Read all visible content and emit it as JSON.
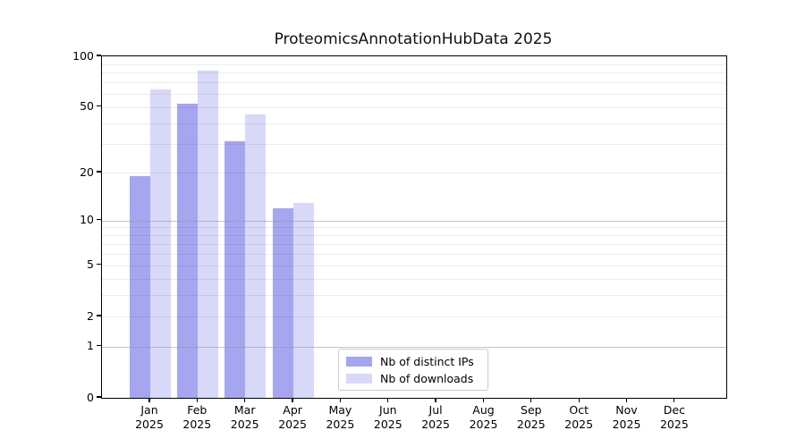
{
  "chart_data": {
    "type": "bar",
    "title": "ProteomicsAnnotationHubData 2025",
    "categories": [
      "Jan",
      "Feb",
      "Mar",
      "Apr",
      "May",
      "Jun",
      "Jul",
      "Aug",
      "Sep",
      "Oct",
      "Nov",
      "Dec"
    ],
    "year_label": "2025",
    "series": [
      {
        "name": "Nb of distinct IPs",
        "color": "#a5a5f0",
        "values": [
          19,
          52,
          31,
          12,
          null,
          null,
          null,
          null,
          null,
          null,
          null,
          null
        ]
      },
      {
        "name": "Nb of downloads",
        "color": "#d8d8f8",
        "values": [
          64,
          82,
          45,
          13,
          null,
          null,
          null,
          null,
          null,
          null,
          null,
          null
        ]
      }
    ],
    "y_ticks": [
      0,
      1,
      2,
      5,
      10,
      20,
      50,
      100
    ],
    "y_scale": "log10(1+v)",
    "ylim": [
      0,
      100
    ],
    "grid_major_values": [
      1,
      10
    ],
    "grid_minor_values": [
      2,
      3,
      4,
      5,
      6,
      7,
      8,
      9,
      20,
      30,
      40,
      50,
      60,
      70,
      80,
      90
    ],
    "grid": "on",
    "legend_position": "bottom-center-inside"
  },
  "colors": {
    "distinct_ips": "#a5a5f0",
    "downloads": "#d8d8f8",
    "grid_minor": "rgba(0,0,0,0.07)",
    "grid_major": "rgba(150,150,150,0.55)",
    "axis": "#000000",
    "background": "#ffffff"
  }
}
